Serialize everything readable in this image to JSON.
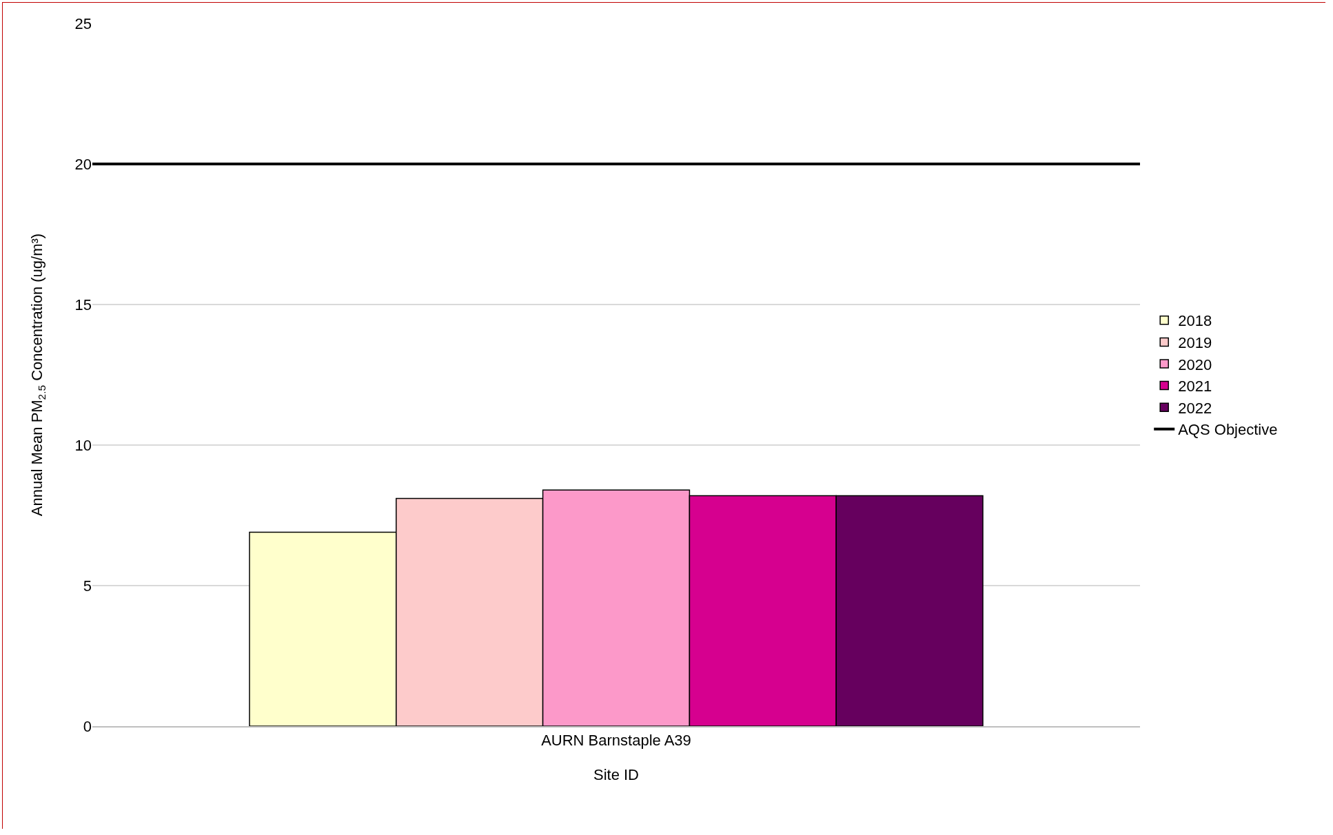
{
  "chart_data": {
    "type": "bar",
    "categories": [
      "AURN Barnstaple A39"
    ],
    "xlabel": "Site ID",
    "ylabel": "Annual Mean PM$_{2.5}$ Concentration (ug/m³)",
    "series": [
      {
        "name": "2018",
        "color": "#ffffcc",
        "values": [
          6.9
        ]
      },
      {
        "name": "2019",
        "color": "#fdcbcb",
        "values": [
          8.1
        ]
      },
      {
        "name": "2020",
        "color": "#fc99c9",
        "values": [
          8.4
        ]
      },
      {
        "name": "2021",
        "color": "#d6008f",
        "values": [
          8.2
        ]
      },
      {
        "name": "2022",
        "color": "#66005e",
        "values": [
          8.2
        ]
      }
    ],
    "ref_lines": [
      {
        "axis": "y",
        "value": 20,
        "label": "AQS Objective",
        "color": "#000000"
      }
    ],
    "ylim": [
      0,
      25
    ],
    "yticks": [
      0,
      5,
      10,
      15,
      20,
      25
    ],
    "grid": "y",
    "legend": "right"
  }
}
